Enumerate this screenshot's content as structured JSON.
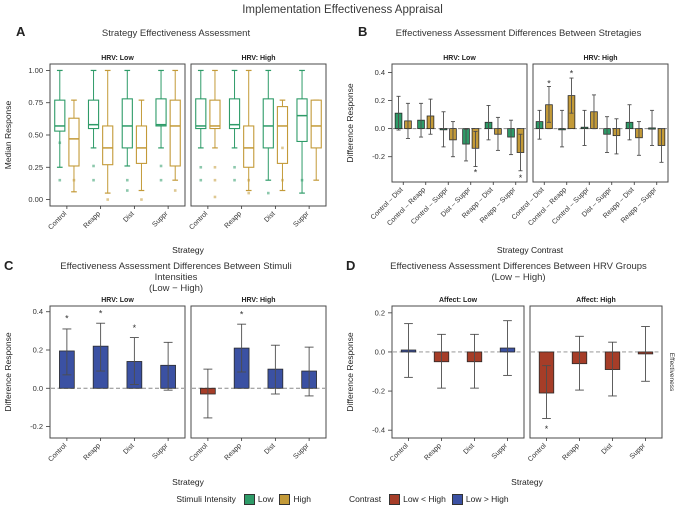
{
  "figure_title": "Implementation Effectiveness Appraisal",
  "colors": {
    "green": "#2E9B68",
    "gold": "#C39A38",
    "blue": "#3B51A3",
    "red": "#A63D28",
    "errbar": "#4d4d4d",
    "panel_border": "#4a4a4a",
    "dash_line": "#8a8a8a",
    "text": "#333333"
  },
  "legend": {
    "stimuli": {
      "label": "Stimuli Intensity",
      "items": [
        {
          "label": "Low",
          "color": "green"
        },
        {
          "label": "High",
          "color": "gold"
        }
      ]
    },
    "contrast": {
      "label": "Contrast",
      "items": [
        {
          "label": "Low < High",
          "color": "red"
        },
        {
          "label": "Low > High",
          "color": "blue"
        }
      ]
    }
  },
  "chart_data": [
    {
      "id": "A",
      "panel_label": "A",
      "type": "boxplot",
      "paired": true,
      "title": "Strategy Effectiveness Assessment",
      "xlabel": "Strategy",
      "ylabel": "Median Response",
      "ylim": [
        -0.05,
        1.05
      ],
      "yticks": [
        {
          "v": 1.0,
          "t": "1.00"
        },
        {
          "v": 0.75,
          "t": "0.75"
        },
        {
          "v": 0.5,
          "t": "0.50"
        },
        {
          "v": 0.25,
          "t": "0.25"
        },
        {
          "v": 0.0,
          "t": "0.00"
        }
      ],
      "zero_line": false,
      "categories": [
        "Control",
        "Reapp",
        "Dist",
        "Suppr"
      ],
      "facets": [
        {
          "label": "HRV: Low",
          "boxes": [
            {
              "cat": 0,
              "color": "green",
              "offset": -1,
              "lo": 0.25,
              "q1": 0.53,
              "med": 0.57,
              "q3": 0.77,
              "hi": 1.0,
              "out": [
                0.44,
                0.15
              ]
            },
            {
              "cat": 0,
              "color": "gold",
              "offset": 1,
              "lo": 0.06,
              "q1": 0.26,
              "med": 0.47,
              "q3": 0.63,
              "hi": 0.77,
              "out": [
                0.15
              ]
            },
            {
              "cat": 1,
              "color": "green",
              "offset": -1,
              "lo": 0.4,
              "q1": 0.55,
              "med": 0.58,
              "q3": 0.77,
              "hi": 1.0,
              "out": [
                0.26,
                0.15
              ]
            },
            {
              "cat": 1,
              "color": "gold",
              "offset": 1,
              "lo": 0.05,
              "q1": 0.27,
              "med": 0.4,
              "q3": 0.57,
              "hi": 1.0,
              "out": [
                0.0
              ]
            },
            {
              "cat": 2,
              "color": "green",
              "offset": -1,
              "lo": 0.26,
              "q1": 0.4,
              "med": 0.57,
              "q3": 0.78,
              "hi": 1.0,
              "out": [
                0.15,
                0.07
              ]
            },
            {
              "cat": 2,
              "color": "gold",
              "offset": 1,
              "lo": 0.07,
              "q1": 0.28,
              "med": 0.4,
              "q3": 0.57,
              "hi": 0.77,
              "out": [
                0.0
              ]
            },
            {
              "cat": 3,
              "color": "green",
              "offset": -1,
              "lo": 0.4,
              "q1": 0.57,
              "med": 0.58,
              "q3": 0.78,
              "hi": 1.0,
              "out": [
                0.26,
                0.15
              ]
            },
            {
              "cat": 3,
              "color": "gold",
              "offset": 1,
              "lo": 0.15,
              "q1": 0.26,
              "med": 0.57,
              "q3": 0.77,
              "hi": 1.0,
              "out": [
                0.07
              ]
            }
          ],
          "stars": []
        },
        {
          "label": "HRV: High",
          "boxes": [
            {
              "cat": 0,
              "color": "green",
              "offset": -1,
              "lo": 0.4,
              "q1": 0.55,
              "med": 0.57,
              "q3": 0.78,
              "hi": 1.0,
              "out": [
                0.25,
                0.15
              ]
            },
            {
              "cat": 0,
              "color": "gold",
              "offset": 1,
              "lo": 0.4,
              "q1": 0.55,
              "med": 0.57,
              "q3": 0.77,
              "hi": 1.0,
              "out": [
                0.25,
                0.15,
                0.02
              ]
            },
            {
              "cat": 1,
              "color": "green",
              "offset": -1,
              "lo": 0.4,
              "q1": 0.55,
              "med": 0.58,
              "q3": 0.78,
              "hi": 1.0,
              "out": [
                0.25,
                0.15
              ]
            },
            {
              "cat": 1,
              "color": "gold",
              "offset": 1,
              "lo": 0.07,
              "q1": 0.25,
              "med": 0.4,
              "q3": 0.57,
              "hi": 1.0,
              "out": [
                0.15,
                0.05
              ]
            },
            {
              "cat": 2,
              "color": "green",
              "offset": -1,
              "lo": 0.15,
              "q1": 0.4,
              "med": 0.57,
              "q3": 0.78,
              "hi": 1.0,
              "out": [
                0.05
              ]
            },
            {
              "cat": 2,
              "color": "gold",
              "offset": 1,
              "lo": 0.07,
              "q1": 0.28,
              "med": 0.57,
              "q3": 0.72,
              "hi": 0.77,
              "out": [
                0.4,
                0.15
              ]
            },
            {
              "cat": 3,
              "color": "green",
              "offset": -1,
              "lo": 0.05,
              "q1": 0.45,
              "med": 0.65,
              "q3": 0.78,
              "hi": 1.0,
              "out": [
                0.15
              ]
            },
            {
              "cat": 3,
              "color": "gold",
              "offset": 1,
              "lo": 0.15,
              "q1": 0.4,
              "med": 0.57,
              "q3": 0.77,
              "hi": 0.77,
              "out": []
            }
          ],
          "stars": []
        }
      ]
    },
    {
      "id": "B",
      "panel_label": "B",
      "type": "bar",
      "paired": true,
      "title": "Effectiveness Assessment Differences Between Stretagies",
      "xlabel": "Strategy Contrast",
      "ylabel": "Difference Response",
      "ylim": [
        -0.38,
        0.46
      ],
      "yticks": [
        {
          "v": 0.4,
          "t": "0.4"
        },
        {
          "v": 0.2,
          "t": "0.2"
        },
        {
          "v": 0.0,
          "t": "0.0"
        },
        {
          "v": -0.2,
          "t": "-0.2"
        }
      ],
      "zero_line": true,
      "categories": [
        "Control – Dist",
        "Control – Reapp",
        "Control – Suppr",
        "Dist – Suppr",
        "Reapp – Dist",
        "Reapp – Suppr"
      ],
      "facets": [
        {
          "label": "HRV: Low",
          "bars": [
            {
              "cat": 0,
              "color": "green",
              "offset": -1,
              "v": 0.11,
              "lo": -0.01,
              "hi": 0.23
            },
            {
              "cat": 0,
              "color": "gold",
              "offset": 1,
              "v": 0.055,
              "lo": -0.07,
              "hi": 0.18
            },
            {
              "cat": 1,
              "color": "green",
              "offset": -1,
              "v": 0.06,
              "lo": -0.06,
              "hi": 0.18
            },
            {
              "cat": 1,
              "color": "gold",
              "offset": 1,
              "v": 0.09,
              "lo": -0.04,
              "hi": 0.21
            },
            {
              "cat": 2,
              "color": "green",
              "offset": -1,
              "v": -0.005,
              "lo": -0.13,
              "hi": 0.12
            },
            {
              "cat": 2,
              "color": "gold",
              "offset": 1,
              "v": -0.08,
              "lo": -0.2,
              "hi": 0.05
            },
            {
              "cat": 3,
              "color": "green",
              "offset": -1,
              "v": -0.11,
              "lo": -0.23,
              "hi": -0.005
            },
            {
              "cat": 3,
              "color": "gold",
              "offset": 1,
              "v": -0.14,
              "lo": -0.27,
              "hi": -0.02
            },
            {
              "cat": 4,
              "color": "green",
              "offset": -1,
              "v": 0.045,
              "lo": -0.08,
              "hi": 0.165
            },
            {
              "cat": 4,
              "color": "gold",
              "offset": 1,
              "v": -0.04,
              "lo": -0.155,
              "hi": 0.08
            },
            {
              "cat": 5,
              "color": "green",
              "offset": -1,
              "v": -0.06,
              "lo": -0.185,
              "hi": 0.06
            },
            {
              "cat": 5,
              "color": "gold",
              "offset": 1,
              "v": -0.17,
              "lo": -0.3,
              "hi": -0.04
            }
          ],
          "stars": [
            {
              "cat": 3,
              "offset": 1,
              "y": -0.305
            },
            {
              "cat": 5,
              "offset": 1,
              "y": -0.345
            }
          ]
        },
        {
          "label": "HRV: High",
          "bars": [
            {
              "cat": 0,
              "color": "green",
              "offset": -1,
              "v": 0.05,
              "lo": -0.075,
              "hi": 0.13
            },
            {
              "cat": 0,
              "color": "gold",
              "offset": 1,
              "v": 0.17,
              "lo": 0.045,
              "hi": 0.3
            },
            {
              "cat": 1,
              "color": "green",
              "offset": -1,
              "v": 0.0,
              "lo": -0.13,
              "hi": 0.13
            },
            {
              "cat": 1,
              "color": "gold",
              "offset": 1,
              "v": 0.235,
              "lo": 0.11,
              "hi": 0.36
            },
            {
              "cat": 2,
              "color": "green",
              "offset": -1,
              "v": 0.01,
              "lo": -0.12,
              "hi": 0.13
            },
            {
              "cat": 2,
              "color": "gold",
              "offset": 1,
              "v": 0.12,
              "lo": 0.0,
              "hi": 0.24
            },
            {
              "cat": 3,
              "color": "green",
              "offset": -1,
              "v": -0.04,
              "lo": -0.17,
              "hi": 0.085
            },
            {
              "cat": 3,
              "color": "gold",
              "offset": 1,
              "v": -0.05,
              "lo": -0.18,
              "hi": 0.07
            },
            {
              "cat": 4,
              "color": "green",
              "offset": -1,
              "v": 0.045,
              "lo": -0.08,
              "hi": 0.17
            },
            {
              "cat": 4,
              "color": "gold",
              "offset": 1,
              "v": -0.065,
              "lo": -0.19,
              "hi": 0.05
            },
            {
              "cat": 5,
              "color": "green",
              "offset": -1,
              "v": 0.005,
              "lo": -0.12,
              "hi": 0.13
            },
            {
              "cat": 5,
              "color": "gold",
              "offset": 1,
              "v": -0.12,
              "lo": -0.24,
              "hi": 0.0
            }
          ],
          "stars": [
            {
              "cat": 0,
              "offset": 1,
              "y": 0.33
            },
            {
              "cat": 1,
              "offset": 1,
              "y": 0.4
            }
          ]
        }
      ]
    },
    {
      "id": "C",
      "panel_label": "C",
      "type": "bar",
      "paired": false,
      "title": "Effectiveness Assessment Differences Between Stimuli Intensities",
      "title2": "(Low − High)",
      "xlabel": "Strategy",
      "ylabel": "Difference Response",
      "ylim": [
        -0.26,
        0.43
      ],
      "yticks": [
        {
          "v": 0.4,
          "t": "0.4"
        },
        {
          "v": 0.2,
          "t": "0.2"
        },
        {
          "v": 0.0,
          "t": "0.0"
        },
        {
          "v": -0.2,
          "t": "-0.2"
        }
      ],
      "zero_line": true,
      "categories": [
        "Control",
        "Reapp",
        "Dist",
        "Suppr"
      ],
      "facets": [
        {
          "label": "HRV: Low",
          "bars": [
            {
              "cat": 0,
              "color": "blue",
              "offset": 0,
              "v": 0.195,
              "lo": 0.07,
              "hi": 0.31
            },
            {
              "cat": 1,
              "color": "blue",
              "offset": 0,
              "v": 0.22,
              "lo": 0.09,
              "hi": 0.34
            },
            {
              "cat": 2,
              "color": "blue",
              "offset": 0,
              "v": 0.14,
              "lo": 0.02,
              "hi": 0.265
            },
            {
              "cat": 3,
              "color": "blue",
              "offset": 0,
              "v": 0.12,
              "lo": -0.01,
              "hi": 0.24
            }
          ],
          "stars": [
            {
              "cat": 0,
              "y": 0.37
            },
            {
              "cat": 1,
              "y": 0.395
            },
            {
              "cat": 2,
              "y": 0.32
            }
          ]
        },
        {
          "label": "HRV: High",
          "bars": [
            {
              "cat": 0,
              "color": "red",
              "offset": 0,
              "v": -0.03,
              "lo": -0.155,
              "hi": 0.1
            },
            {
              "cat": 1,
              "color": "blue",
              "offset": 0,
              "v": 0.21,
              "lo": 0.085,
              "hi": 0.335
            },
            {
              "cat": 2,
              "color": "blue",
              "offset": 0,
              "v": 0.1,
              "lo": -0.03,
              "hi": 0.225
            },
            {
              "cat": 3,
              "color": "blue",
              "offset": 0,
              "v": 0.09,
              "lo": -0.04,
              "hi": 0.215
            }
          ],
          "stars": [
            {
              "cat": 1,
              "y": 0.39
            }
          ]
        }
      ]
    },
    {
      "id": "D",
      "panel_label": "D",
      "type": "bar",
      "paired": false,
      "title": "Effectiveness Assessment Differences Between HRV Groups",
      "title2": "(Low − High)",
      "xlabel": "Strategy",
      "ylabel": "Difference Response",
      "right_strip": "Effectiveness",
      "ylim": [
        -0.44,
        0.235
      ],
      "yticks": [
        {
          "v": 0.2,
          "t": "0.2"
        },
        {
          "v": 0.0,
          "t": "0.0"
        },
        {
          "v": -0.2,
          "t": "-0.2"
        },
        {
          "v": -0.4,
          "t": "-0.4"
        }
      ],
      "zero_line": true,
      "categories": [
        "Control",
        "Reapp",
        "Dist",
        "Suppr"
      ],
      "facets": [
        {
          "label": "Affect: Low",
          "bars": [
            {
              "cat": 0,
              "color": "blue",
              "offset": 0,
              "v": 0.01,
              "lo": -0.13,
              "hi": 0.145
            },
            {
              "cat": 1,
              "color": "red",
              "offset": 0,
              "v": -0.05,
              "lo": -0.185,
              "hi": 0.09
            },
            {
              "cat": 2,
              "color": "red",
              "offset": 0,
              "v": -0.05,
              "lo": -0.185,
              "hi": 0.09
            },
            {
              "cat": 3,
              "color": "blue",
              "offset": 0,
              "v": 0.02,
              "lo": -0.12,
              "hi": 0.16
            }
          ],
          "stars": []
        },
        {
          "label": "Affect: High",
          "bars": [
            {
              "cat": 0,
              "color": "red",
              "offset": 0,
              "v": -0.21,
              "lo": -0.34,
              "hi": -0.07
            },
            {
              "cat": 1,
              "color": "red",
              "offset": 0,
              "v": -0.06,
              "lo": -0.195,
              "hi": 0.08
            },
            {
              "cat": 2,
              "color": "red",
              "offset": 0,
              "v": -0.09,
              "lo": -0.225,
              "hi": 0.05
            },
            {
              "cat": 3,
              "color": "red",
              "offset": 0,
              "v": -0.01,
              "lo": -0.15,
              "hi": 0.13
            }
          ],
          "stars": [
            {
              "cat": 0,
              "y": -0.39
            }
          ]
        }
      ]
    }
  ]
}
